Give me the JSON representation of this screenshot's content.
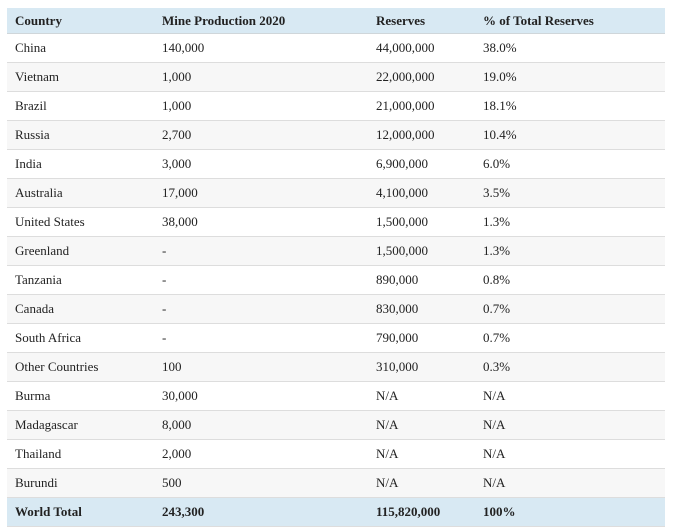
{
  "colors": {
    "header_bg": "#d8e9f3",
    "stripe_bg": "#f7f7f7",
    "border": "#dddddd",
    "text": "#222222"
  },
  "table": {
    "columns": [
      "Country",
      "Mine Production 2020",
      "Reserves",
      "% of Total Reserves"
    ],
    "rows": [
      {
        "country": "China",
        "production": "140,000",
        "reserves": "44,000,000",
        "pct": "38.0%"
      },
      {
        "country": "Vietnam",
        "production": "1,000",
        "reserves": "22,000,000",
        "pct": "19.0%"
      },
      {
        "country": "Brazil",
        "production": "1,000",
        "reserves": "21,000,000",
        "pct": "18.1%"
      },
      {
        "country": "Russia",
        "production": "2,700",
        "reserves": "12,000,000",
        "pct": "10.4%"
      },
      {
        "country": "India",
        "production": "3,000",
        "reserves": "6,900,000",
        "pct": "6.0%"
      },
      {
        "country": "Australia",
        "production": "17,000",
        "reserves": "4,100,000",
        "pct": "3.5%"
      },
      {
        "country": "United States",
        "production": "38,000",
        "reserves": "1,500,000",
        "pct": "1.3%"
      },
      {
        "country": "Greenland",
        "production": "-",
        "reserves": "1,500,000",
        "pct": "1.3%"
      },
      {
        "country": "Tanzania",
        "production": "-",
        "reserves": "890,000",
        "pct": "0.8%"
      },
      {
        "country": "Canada",
        "production": "-",
        "reserves": "830,000",
        "pct": "0.7%"
      },
      {
        "country": "South Africa",
        "production": "-",
        "reserves": "790,000",
        "pct": "0.7%"
      },
      {
        "country": "Other Countries",
        "production": "100",
        "reserves": "310,000",
        "pct": "0.3%"
      },
      {
        "country": "Burma",
        "production": "30,000",
        "reserves": "N/A",
        "pct": "N/A"
      },
      {
        "country": "Madagascar",
        "production": "8,000",
        "reserves": "N/A",
        "pct": "N/A"
      },
      {
        "country": "Thailand",
        "production": "2,000",
        "reserves": "N/A",
        "pct": "N/A"
      },
      {
        "country": "Burundi",
        "production": "500",
        "reserves": "N/A",
        "pct": "N/A"
      }
    ],
    "footer": {
      "country": "World Total",
      "production": "243,300",
      "reserves": "115,820,000",
      "pct": "100%"
    }
  }
}
